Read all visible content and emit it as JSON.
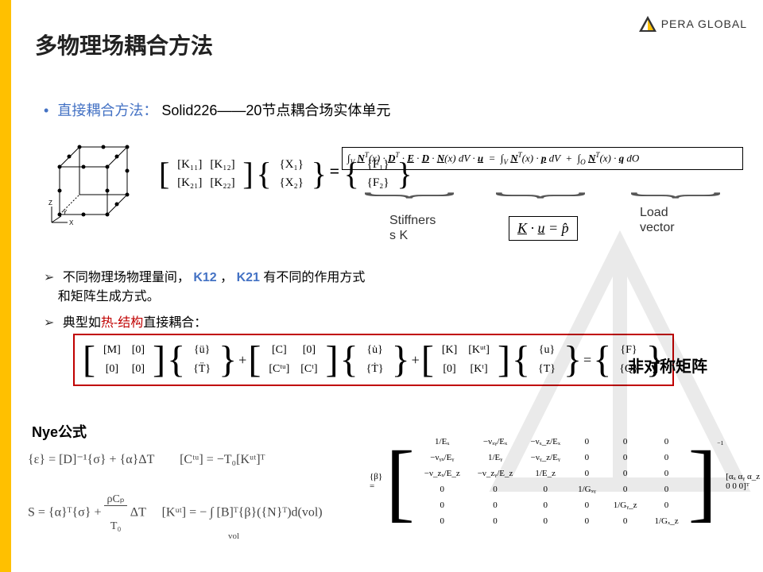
{
  "logo_text": "PERA GLOBAL",
  "title": "多物理场耦合方法",
  "bullet1_label": "直接耦合方法：",
  "bullet1_text": "Solid226——20节点耦合场实体单元",
  "matrix_K": [
    [
      "[K₁₁]",
      "[K₁₂]"
    ],
    [
      "[K₂₁]",
      "[K₂₂]"
    ]
  ],
  "vec_X": [
    "{X₁}",
    "{X₂}"
  ],
  "vec_F": [
    "{F₁}",
    "{F₂}"
  ],
  "integral_eq": "∫_V 𝐍ᵀ(x) · 𝐃ᵀ · 𝐄 · 𝐃 · 𝐍(x) dV · 𝐮  =  ∫_V 𝐍ᵀ(x) · 𝐩 dV  +  ∫_O 𝐍ᵀ(x) · 𝐪 dO",
  "stiffness_label": "Stiffners\ns K",
  "ku_eq": "K · u = p̂",
  "load_label": "Load\nvector",
  "bullet2_a": "不同物理场物理量间， ",
  "bullet2_k12": "K12",
  "bullet2_mid": "， ",
  "bullet2_k21": "K21",
  "bullet2_b": "有不同的作用方式",
  "bullet2_c": "和矩阵生成方式。",
  "bullet3_a": "典型如",
  "bullet3_red": "热-结构",
  "bullet3_b": "直接耦合：",
  "coupled": {
    "M": [
      [
        "[M]",
        "[0]"
      ],
      [
        "[0]",
        "[0]"
      ]
    ],
    "acc": [
      "{ü}",
      "{T̈}"
    ],
    "C": [
      [
        "[C]",
        "[0]"
      ],
      [
        "[Cᵗᵘ]",
        "[Cᵗ]"
      ]
    ],
    "vel": [
      "{u̇}",
      "{Ṫ}"
    ],
    "K": [
      [
        "[K]",
        "[Kᵘᵗ]"
      ],
      [
        "[0]",
        "[Kᵗ]"
      ]
    ],
    "disp": [
      "{u}",
      "{T}"
    ],
    "F": [
      "{F}",
      "{Q}"
    ]
  },
  "asym_label": "非对称矩阵",
  "nye_title": "Nye公式",
  "nye_eq1": "{ε} = [D]⁻¹{σ} + {α}ΔT",
  "nye_eq2": "[Cᵗᵘ] = −T₀[Kᵘᵗ]ᵀ",
  "nye_eq3_lhs": "S = {α}ᵀ{σ} + ",
  "nye_eq3_frac_n": "ρCₚ",
  "nye_eq3_frac_d": "T₀",
  "nye_eq3_rhs": "ΔT",
  "nye_eq4": "[Kᵘᵗ] = − ∫ [B]ᵀ{β}({N}ᵀ)d(vol)",
  "nye_eq4_sub": "vol",
  "beta_prefix": "{β} =",
  "beta_matrix": [
    [
      "1/Eₓ",
      "−νₓᵧ/Eₓ",
      "−νₓ_z/Eₓ",
      "0",
      "0",
      "0"
    ],
    [
      "−νᵧₓ/Eᵧ",
      "1/Eᵧ",
      "−νᵧ_z/Eᵧ",
      "0",
      "0",
      "0"
    ],
    [
      "−ν_zₓ/E_z",
      "−ν_zᵧ/E_z",
      "1/E_z",
      "0",
      "0",
      "0"
    ],
    [
      "0",
      "0",
      "0",
      "1/Gₓᵧ",
      "0",
      "0"
    ],
    [
      "0",
      "0",
      "0",
      "0",
      "1/Gᵧ_z",
      "0"
    ],
    [
      "0",
      "0",
      "0",
      "0",
      "0",
      "1/Gₓ_z"
    ]
  ],
  "beta_exp": "−1",
  "alpha_vec": "[αₓ αᵧ α_z 0 0 0]ᵀ",
  "colors": {
    "accent_yellow": "#ffc000",
    "accent_blue": "#4472c4",
    "accent_red": "#c00000",
    "text": "#222222",
    "bg": "#ffffff"
  }
}
